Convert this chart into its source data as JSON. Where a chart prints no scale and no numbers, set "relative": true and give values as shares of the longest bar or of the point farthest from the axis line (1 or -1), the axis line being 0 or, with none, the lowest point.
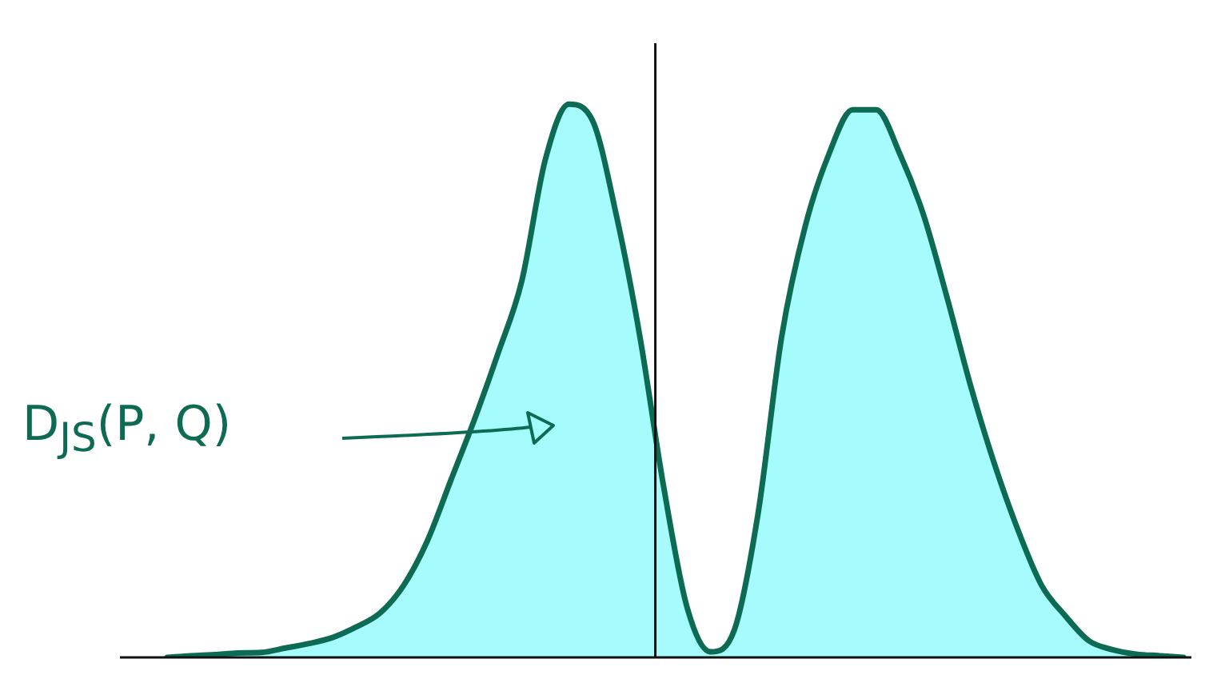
{
  "chart_data": {
    "type": "area",
    "relative": true,
    "annotations": [
      "D$_{JS}$(P, Q)"
    ],
    "categories": [
      null,
      null,
      null,
      null,
      null,
      null,
      null,
      null,
      null,
      null,
      null,
      null,
      null,
      null,
      null,
      null,
      null,
      null,
      null,
      null,
      null,
      null,
      null,
      null,
      null,
      null,
      null,
      null,
      null,
      null,
      null,
      null,
      null,
      null,
      null,
      null,
      null,
      null,
      null,
      null,
      null,
      null,
      null,
      null
    ],
    "series": [
      {
        "color": "#a6fcfc",
        "values": [
          0,
          0.003,
          0.005,
          0.008,
          0.009,
          0.017,
          0.025,
          0.036,
          0.055,
          0.08,
          0.13,
          0.21,
          0.32,
          0.43,
          0.55,
          0.68,
          0.9,
          1,
          0.97,
          0.8,
          0.58,
          0.31,
          0.09,
          0.01,
          0.05,
          0.26,
          0.58,
          0.78,
          0.91,
          0.99,
          0.99,
          0.91,
          0.8,
          0.65,
          0.49,
          0.35,
          0.23,
          0.13,
          0.075,
          0.03,
          0.014,
          0.006,
          0.003,
          0
        ]
      }
    ]
  }
}
